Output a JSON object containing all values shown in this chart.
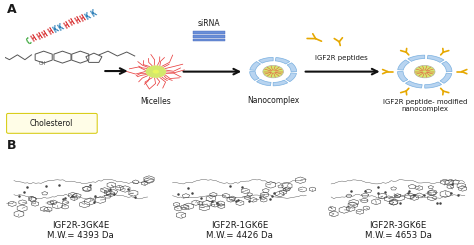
{
  "panel_A_label": "A",
  "panel_B_label": "B",
  "cholesterol_label": "Cholesterol",
  "cholesterol_bg": "#fffde7",
  "cholesterol_border": "#d4c800",
  "peptide_sequence": [
    {
      "char": "C",
      "color": "#2ca02c"
    },
    {
      "char": "H",
      "color": "#d62728"
    },
    {
      "char": "H",
      "color": "#d62728"
    },
    {
      "char": "H",
      "color": "#d62728"
    },
    {
      "char": "H",
      "color": "#d62728"
    },
    {
      "char": "K",
      "color": "#1f77b4"
    },
    {
      "char": "K",
      "color": "#1f77b4"
    },
    {
      "char": "H",
      "color": "#d62728"
    },
    {
      "char": "H",
      "color": "#d62728"
    },
    {
      "char": "H",
      "color": "#d62728"
    },
    {
      "char": "H",
      "color": "#d62728"
    },
    {
      "char": "K",
      "color": "#1f77b4"
    },
    {
      "char": "K",
      "color": "#1f77b4"
    }
  ],
  "micelles_label": "Micelles",
  "sirna_label": "siRNA",
  "nanocomplex_label": "Nanocomplex",
  "igf2r_peptides_label": "IGF2R peptides",
  "igf2r_nano_label": "IGF2R peptide- modified\nnanocomplex",
  "peptide1_name": "IGF2R-3GK4E",
  "peptide1_mw": "M.W.= 4393 Da",
  "peptide2_name": "IGF2R-1GK6E",
  "peptide2_mw": "M.W.= 4426 Da",
  "peptide3_name": "IGF2R-3GK6E",
  "peptide3_mw": "M.W.= 4653 Da",
  "bg_color": "#ffffff",
  "text_color": "#1a1a1a",
  "arrow_color": "#111111",
  "micelle_core_color": "#f5f5aa",
  "micelle_filament_color": "#e84040",
  "nanocomplex_ring_color": "#7ab0e0",
  "nanocomplex_seg_color": "#b8d4f0",
  "igf2r_peptide_color": "#e6a800",
  "igf2r_stem_color": "#c87800",
  "sirna_bar_color": "#6a8fd8",
  "micelle_center_color": "#d4e86c"
}
